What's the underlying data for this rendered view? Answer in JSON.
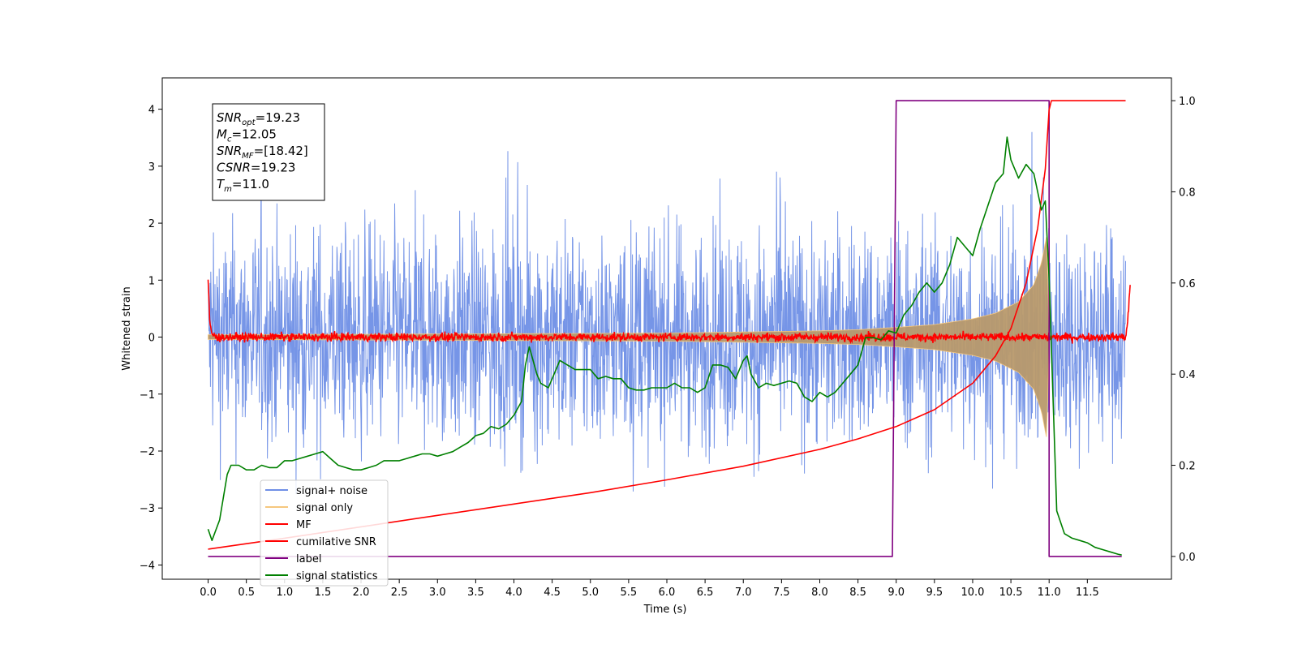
{
  "chart_data": {
    "type": "line",
    "xlabel": "Time (s)",
    "ylabel": "Whitened strain",
    "ylabel_right": "",
    "xlim": [
      -0.6,
      12.6
    ],
    "ylim": [
      -4.25,
      4.55
    ],
    "ylim_right": [
      -0.05,
      1.05
    ],
    "x_ticks": [
      0.0,
      0.5,
      1.0,
      1.5,
      2.0,
      2.5,
      3.0,
      3.5,
      4.0,
      4.5,
      5.0,
      5.5,
      6.0,
      6.5,
      7.0,
      7.5,
      8.0,
      8.5,
      9.0,
      9.5,
      10.0,
      10.5,
      11.0,
      11.5
    ],
    "x_tick_labels": [
      "0.0",
      "0.5",
      "1.0",
      "1.5",
      "2.0",
      "2.5",
      "3.0",
      "3.5",
      "4.0",
      "4.5",
      "5.0",
      "5.5",
      "6.0",
      "6.5",
      "7.0",
      "7.5",
      "8.0",
      "8.5",
      "9.0",
      "9.5",
      "10.0",
      "10.5",
      "11.0",
      "11.5"
    ],
    "y_ticks": [
      -4,
      -3,
      -2,
      -1,
      0,
      1,
      2,
      3,
      4
    ],
    "y_tick_labels": [
      "−4",
      "−3",
      "−2",
      "−1",
      "0",
      "1",
      "2",
      "3",
      "4"
    ],
    "y_ticks_right": [
      0.0,
      0.2,
      0.4,
      0.6,
      0.8,
      1.0
    ],
    "y_tick_labels_right": [
      "0.0",
      "0.2",
      "0.4",
      "0.6",
      "0.8",
      "1.0"
    ],
    "annotation": {
      "lines": [
        {
          "sym": "SNR",
          "sub": "opt",
          "value": "=19.23"
        },
        {
          "sym": "M",
          "sub": "c",
          "value": "=12.05"
        },
        {
          "sym": "SNR",
          "sub": "MF",
          "value": "=[18.42]"
        },
        {
          "sym": "CSNR",
          "sub": "",
          "value": "=19.23"
        },
        {
          "sym": "T",
          "sub": "m",
          "value": "=11.0"
        }
      ]
    },
    "legend_position": "lower-left",
    "series": [
      {
        "name": "signal+ noise",
        "color": "#6f8fe6",
        "axis": "left",
        "noise_band": {
          "x_start": 0.0,
          "x_end": 12.0,
          "typical_amplitude": 2.2,
          "max_peak": 3.6,
          "min_trough": -3.85
        }
      },
      {
        "name": "signal only",
        "color": "#f5c77e",
        "axis": "left",
        "envelope": {
          "x": [
            0.0,
            2.0,
            4.0,
            6.0,
            7.0,
            8.0,
            8.5,
            9.0,
            9.5,
            10.0,
            10.3,
            10.6,
            10.8,
            10.9,
            10.97,
            11.0
          ],
          "amplitude": [
            0.04,
            0.05,
            0.06,
            0.07,
            0.09,
            0.11,
            0.13,
            0.17,
            0.22,
            0.32,
            0.42,
            0.62,
            0.92,
            1.3,
            1.8,
            0.0
          ]
        }
      },
      {
        "name": "MF",
        "color": "#ff0000",
        "axis": "left",
        "x": [
          0.0,
          0.02,
          0.05,
          0.1,
          12.0,
          12.03,
          12.06
        ],
        "y": [
          1.0,
          0.3,
          0.05,
          0.0,
          0.0,
          0.3,
          0.92
        ],
        "noise_amplitude": 0.08
      },
      {
        "name": "cumilative SNR",
        "color": "#ff0000",
        "axis": "right",
        "x": [
          0.0,
          1.0,
          2.0,
          3.0,
          4.0,
          5.0,
          6.0,
          7.0,
          8.0,
          8.5,
          9.0,
          9.5,
          10.0,
          10.3,
          10.5,
          10.7,
          10.85,
          10.95,
          11.0,
          11.03,
          12.0
        ],
        "y": [
          0.016,
          0.04,
          0.065,
          0.09,
          0.115,
          0.14,
          0.168,
          0.198,
          0.235,
          0.258,
          0.285,
          0.322,
          0.38,
          0.44,
          0.5,
          0.6,
          0.72,
          0.85,
          0.98,
          1.0,
          1.0
        ]
      },
      {
        "name": "label",
        "color": "#800080",
        "axis": "right",
        "x": [
          0.0,
          8.95,
          9.0,
          10.99,
          11.0,
          11.0,
          11.06,
          11.06,
          11.95
        ],
        "y": [
          0.0,
          0.0,
          1.0,
          1.0,
          1.0,
          0.0,
          0.0,
          0.0,
          0.0
        ]
      },
      {
        "name": "signal statistics",
        "color": "#008000",
        "axis": "right",
        "x": [
          0.0,
          0.05,
          0.15,
          0.25,
          0.3,
          0.4,
          0.5,
          0.6,
          0.7,
          0.8,
          0.9,
          1.0,
          1.1,
          1.2,
          1.3,
          1.4,
          1.5,
          1.6,
          1.7,
          1.8,
          1.9,
          2.0,
          2.1,
          2.2,
          2.3,
          2.4,
          2.5,
          2.6,
          2.7,
          2.8,
          2.9,
          3.0,
          3.1,
          3.2,
          3.3,
          3.4,
          3.5,
          3.6,
          3.7,
          3.8,
          3.9,
          4.0,
          4.1,
          4.15,
          4.2,
          4.3,
          4.35,
          4.45,
          4.6,
          4.7,
          4.8,
          4.9,
          5.0,
          5.1,
          5.2,
          5.3,
          5.4,
          5.5,
          5.6,
          5.7,
          5.8,
          5.9,
          6.0,
          6.1,
          6.2,
          6.3,
          6.4,
          6.5,
          6.6,
          6.7,
          6.8,
          6.9,
          7.0,
          7.05,
          7.1,
          7.2,
          7.3,
          7.4,
          7.5,
          7.6,
          7.7,
          7.8,
          7.9,
          8.0,
          8.1,
          8.2,
          8.3,
          8.4,
          8.5,
          8.6,
          8.7,
          8.8,
          8.9,
          9.0,
          9.1,
          9.2,
          9.3,
          9.4,
          9.5,
          9.6,
          9.7,
          9.8,
          9.9,
          10.0,
          10.1,
          10.2,
          10.3,
          10.4,
          10.45,
          10.5,
          10.6,
          10.7,
          10.8,
          10.9,
          10.95,
          11.0,
          11.1,
          11.2,
          11.3,
          11.4,
          11.5,
          11.6,
          11.7,
          11.8,
          11.9,
          11.95
        ],
        "y": [
          0.06,
          0.035,
          0.08,
          0.18,
          0.2,
          0.2,
          0.19,
          0.19,
          0.2,
          0.195,
          0.195,
          0.21,
          0.21,
          0.215,
          0.22,
          0.225,
          0.23,
          0.215,
          0.2,
          0.195,
          0.19,
          0.19,
          0.195,
          0.2,
          0.21,
          0.21,
          0.21,
          0.215,
          0.22,
          0.225,
          0.225,
          0.22,
          0.225,
          0.23,
          0.24,
          0.25,
          0.265,
          0.27,
          0.285,
          0.28,
          0.29,
          0.31,
          0.34,
          0.42,
          0.46,
          0.4,
          0.38,
          0.37,
          0.43,
          0.42,
          0.41,
          0.41,
          0.41,
          0.39,
          0.395,
          0.39,
          0.39,
          0.37,
          0.365,
          0.365,
          0.37,
          0.37,
          0.37,
          0.38,
          0.37,
          0.37,
          0.36,
          0.37,
          0.42,
          0.42,
          0.415,
          0.39,
          0.43,
          0.44,
          0.4,
          0.37,
          0.38,
          0.375,
          0.38,
          0.385,
          0.38,
          0.35,
          0.34,
          0.36,
          0.35,
          0.36,
          0.38,
          0.4,
          0.42,
          0.48,
          0.48,
          0.475,
          0.495,
          0.49,
          0.53,
          0.55,
          0.58,
          0.6,
          0.58,
          0.6,
          0.64,
          0.7,
          0.68,
          0.66,
          0.72,
          0.77,
          0.82,
          0.84,
          0.92,
          0.87,
          0.83,
          0.86,
          0.84,
          0.76,
          0.78,
          0.61,
          0.1,
          0.05,
          0.04,
          0.035,
          0.03,
          0.02,
          0.015,
          0.01,
          0.005,
          0.003
        ]
      }
    ]
  }
}
